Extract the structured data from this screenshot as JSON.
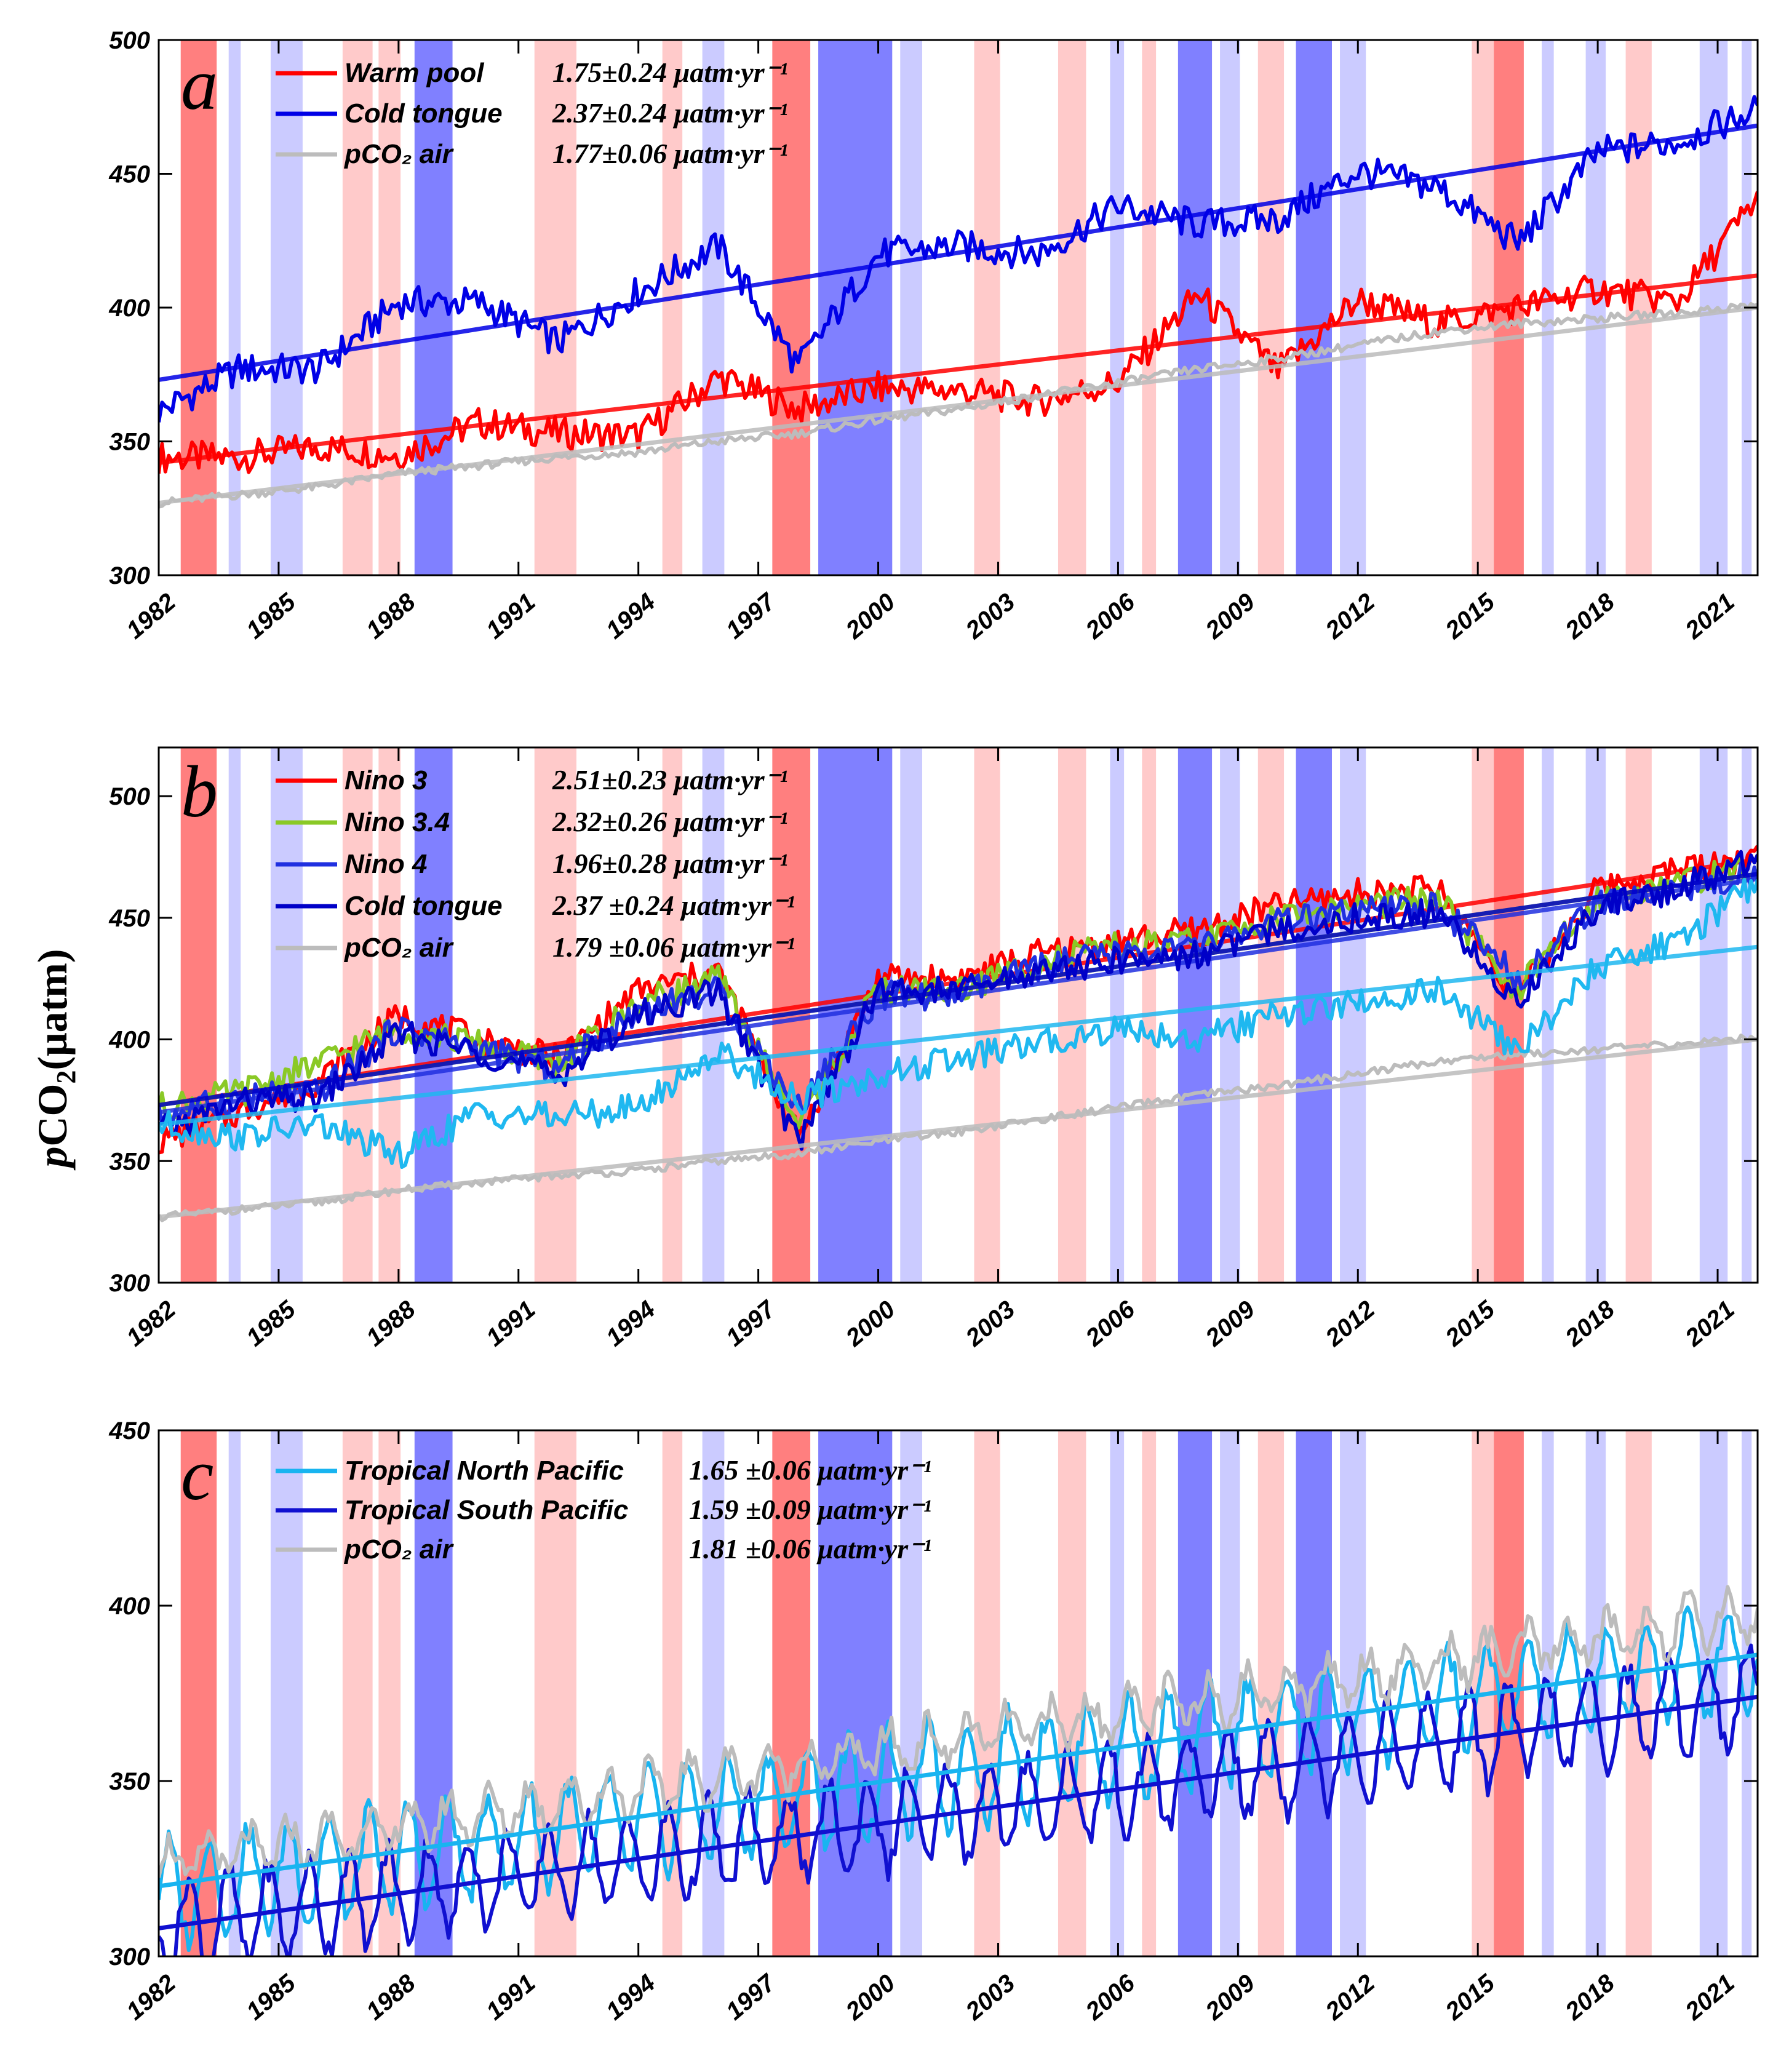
{
  "figure": {
    "ylabel": "pCO₂(μatm)",
    "ylabel_parts": {
      "italic": "p",
      "main": "CO",
      "sub": "2",
      "tail": "(μatm)"
    }
  },
  "colors": {
    "el_nino_strong": "#ff7f7f",
    "el_nino_weak": "#ffcaca",
    "la_nina_strong": "#8080ff",
    "la_nina_weak": "#cbcbff"
  },
  "enso_bands": [
    {
      "start": 1982.55,
      "end": 1983.45,
      "kind": "el_nino_strong"
    },
    {
      "start": 1983.75,
      "end": 1984.05,
      "kind": "la_nina_weak"
    },
    {
      "start": 1984.8,
      "end": 1985.6,
      "kind": "la_nina_weak"
    },
    {
      "start": 1986.6,
      "end": 1987.35,
      "kind": "el_nino_weak"
    },
    {
      "start": 1987.5,
      "end": 1988.05,
      "kind": "el_nino_weak"
    },
    {
      "start": 1988.4,
      "end": 1989.35,
      "kind": "la_nina_strong"
    },
    {
      "start": 1991.4,
      "end": 1992.45,
      "kind": "el_nino_weak"
    },
    {
      "start": 1994.6,
      "end": 1995.1,
      "kind": "el_nino_weak"
    },
    {
      "start": 1995.6,
      "end": 1996.15,
      "kind": "la_nina_weak"
    },
    {
      "start": 1997.35,
      "end": 1998.3,
      "kind": "el_nino_strong"
    },
    {
      "start": 1998.5,
      "end": 2000.35,
      "kind": "la_nina_strong"
    },
    {
      "start": 2000.55,
      "end": 2001.1,
      "kind": "la_nina_weak"
    },
    {
      "start": 2002.4,
      "end": 2003.05,
      "kind": "el_nino_weak"
    },
    {
      "start": 2004.5,
      "end": 2005.2,
      "kind": "el_nino_weak"
    },
    {
      "start": 2005.8,
      "end": 2006.15,
      "kind": "la_nina_weak"
    },
    {
      "start": 2006.6,
      "end": 2006.95,
      "kind": "el_nino_weak"
    },
    {
      "start": 2007.5,
      "end": 2008.35,
      "kind": "la_nina_strong"
    },
    {
      "start": 2008.55,
      "end": 2009.05,
      "kind": "la_nina_weak"
    },
    {
      "start": 2009.5,
      "end": 2010.15,
      "kind": "el_nino_weak"
    },
    {
      "start": 2010.45,
      "end": 2011.35,
      "kind": "la_nina_strong"
    },
    {
      "start": 2011.55,
      "end": 2012.2,
      "kind": "la_nina_weak"
    },
    {
      "start": 2014.85,
      "end": 2015.4,
      "kind": "el_nino_weak"
    },
    {
      "start": 2015.4,
      "end": 2016.15,
      "kind": "el_nino_strong"
    },
    {
      "start": 2016.6,
      "end": 2016.9,
      "kind": "la_nina_weak"
    },
    {
      "start": 2017.7,
      "end": 2018.2,
      "kind": "la_nina_weak"
    },
    {
      "start": 2018.7,
      "end": 2019.35,
      "kind": "el_nino_weak"
    },
    {
      "start": 2020.55,
      "end": 2021.25,
      "kind": "la_nina_weak"
    },
    {
      "start": 2021.6,
      "end": 2021.85,
      "kind": "la_nina_weak"
    }
  ],
  "panels": [
    {
      "letter": "a",
      "legend": [
        {
          "label": "Warm pool",
          "rate": "1.75±0.24 μatm·yr⁻¹",
          "color": "#ff0000"
        },
        {
          "label": "Cold tongue",
          "rate": "2.37±0.24 μatm·yr⁻¹",
          "color": "#0000e6"
        },
        {
          "label": "pCO₂ air",
          "rate": "1.77±0.06 μatm·yr⁻¹",
          "color": "#bcbcbc"
        }
      ]
    },
    {
      "letter": "b",
      "legend": [
        {
          "label": "Nino 3",
          "rate": "2.51±0.23 μatm·yr⁻¹",
          "color": "#ff0000"
        },
        {
          "label": "Nino 3.4",
          "rate": "2.32±0.26 μatm·yr⁻¹",
          "color": "#8ac926"
        },
        {
          "label": "Nino 4",
          "rate": "1.96±0.28 μatm·yr⁻¹",
          "color": "#2030e0"
        },
        {
          "label": "Cold tongue",
          "rate": "2.37 ±0.24 μatm·yr⁻¹",
          "color": "#0000c8"
        },
        {
          "label": "pCO₂ air",
          "rate": "1.79 ±0.06 μatm·yr⁻¹",
          "color": "#bcbcbc"
        }
      ]
    },
    {
      "letter": "c",
      "legend": [
        {
          "label": "Tropical North Pacific",
          "rate": "1.65 ±0.06 μatm·yr⁻¹",
          "color": "#18b4f0"
        },
        {
          "label": "Tropical South Pacific",
          "rate": "1.59 ±0.09 μatm·yr⁻¹",
          "color": "#1010d0"
        },
        {
          "label": "pCO₂ air",
          "rate": "1.81 ±0.06 μatm·yr⁻¹",
          "color": "#bcbcbc"
        }
      ]
    }
  ],
  "chart_data": [
    {
      "type": "line",
      "xlim": [
        1982,
        2022
      ],
      "ylim": [
        300,
        500
      ],
      "xticks": [
        "1982",
        "1985",
        "1988",
        "1991",
        "1994",
        "1997",
        "2000",
        "2003",
        "2006",
        "2009",
        "2012",
        "2015",
        "2018",
        "2021"
      ],
      "yticks": [
        "300",
        "350",
        "400",
        "450",
        "500"
      ],
      "x": [
        1982,
        1984,
        1986,
        1988,
        1990,
        1992,
        1994,
        1996,
        1998,
        2000,
        2002,
        2004,
        2006,
        2008,
        2010,
        2012,
        2014,
        2016,
        2018,
        2020,
        2022
      ],
      "series": [
        {
          "name": "Warm pool",
          "color": "#ff0000",
          "values": [
            344,
            344,
            348,
            345,
            357,
            353,
            352,
            374,
            362,
            370,
            369,
            365,
            372,
            405,
            376,
            403,
            394,
            400,
            407,
            402,
            441
          ],
          "trend": [
            342,
            412
          ]
        },
        {
          "name": "Cold tongue",
          "color": "#0000e6",
          "values": [
            361,
            377,
            377,
            402,
            402,
            387,
            406,
            423,
            378,
            420,
            423,
            420,
            438,
            431,
            433,
            451,
            445,
            424,
            458,
            462,
            474
          ],
          "trend": [
            373,
            468
          ]
        },
        {
          "name": "pCO2 air",
          "color": "#bcbcbc",
          "values": [
            327,
            330,
            333,
            338,
            341,
            344,
            346,
            350,
            353,
            358,
            362,
            367,
            372,
            377,
            381,
            386,
            391,
            394,
            396,
            398,
            401
          ],
          "trend": [
            327,
            400
          ]
        }
      ]
    },
    {
      "type": "line",
      "xlim": [
        1982,
        2022
      ],
      "ylim": [
        300,
        520
      ],
      "xticks": [
        "1982",
        "1985",
        "1988",
        "1991",
        "1994",
        "1997",
        "2000",
        "2003",
        "2006",
        "2009",
        "2012",
        "2015",
        "2018",
        "2021"
      ],
      "yticks": [
        "300",
        "350",
        "400",
        "450",
        "500"
      ],
      "x": [
        1982,
        1984,
        1986,
        1988,
        1990,
        1992,
        1994,
        1996,
        1998,
        2000,
        2002,
        2004,
        2006,
        2008,
        2010,
        2012,
        2014,
        2016,
        2018,
        2020,
        2022
      ],
      "series": [
        {
          "name": "Nino 3",
          "color": "#ff0000",
          "values": [
            358,
            370,
            383,
            410,
            400,
            392,
            420,
            428,
            360,
            425,
            425,
            435,
            440,
            445,
            455,
            460,
            462,
            418,
            462,
            470,
            475
          ],
          "trend": [
            373,
            474
          ]
        },
        {
          "name": "Nino 3.4",
          "color": "#8ac926",
          "values": [
            372,
            378,
            390,
            405,
            398,
            390,
            415,
            425,
            365,
            420,
            420,
            432,
            438,
            440,
            450,
            455,
            458,
            420,
            458,
            465,
            470
          ],
          "trend": [
            373,
            468
          ]
        },
        {
          "name": "Nino 4",
          "color": "#2030e0",
          "values": [
            368,
            376,
            378,
            405,
            396,
            388,
            412,
            420,
            372,
            418,
            418,
            430,
            435,
            438,
            448,
            452,
            455,
            425,
            455,
            462,
            468
          ],
          "trend": [
            370,
            466
          ]
        },
        {
          "name": "Cold tongue",
          "color": "#0000c8",
          "values": [
            362,
            374,
            376,
            402,
            395,
            385,
            410,
            420,
            358,
            420,
            420,
            428,
            432,
            435,
            445,
            450,
            452,
            415,
            455,
            462,
            474
          ],
          "trend": [
            373,
            468
          ]
        },
        {
          "name": "pCO2 air",
          "color": "#bcbcbc",
          "values": [
            327,
            330,
            333,
            338,
            341,
            344,
            346,
            350,
            353,
            358,
            362,
            367,
            372,
            377,
            381,
            386,
            391,
            394,
            396,
            398,
            401
          ],
          "trend": [
            327,
            400
          ]
        },
        {
          "name": "",
          "color": "#1fb8f0",
          "values": [
            365,
            360,
            365,
            352,
            370,
            368,
            372,
            395,
            375,
            385,
            392,
            398,
            405,
            400,
            410,
            415,
            420,
            395,
            430,
            440,
            465
          ],
          "trend": [
            365,
            438
          ]
        }
      ]
    },
    {
      "type": "line",
      "xlim": [
        1982,
        2022
      ],
      "ylim": [
        300,
        450
      ],
      "xticks": [
        "1982",
        "1985",
        "1988",
        "1991",
        "1994",
        "1997",
        "2000",
        "2003",
        "2006",
        "2009",
        "2012",
        "2015",
        "2018",
        "2021"
      ],
      "yticks": [
        "300",
        "350",
        "400",
        "450"
      ],
      "seasonal": true,
      "series": [
        {
          "name": "Tropical North Pacific",
          "color": "#18b4f0",
          "start": 318,
          "end": 386,
          "amplitude": 14
        },
        {
          "name": "Tropical South Pacific",
          "color": "#1010d0",
          "start": 308,
          "end": 374,
          "amplitude": 13
        },
        {
          "name": "pCO2 air",
          "color": "#bcbcbc",
          "start": 326,
          "end": 398,
          "amplitude": 6
        }
      ],
      "trends": [
        {
          "color": "#18b4f0",
          "values": [
            320,
            386
          ]
        },
        {
          "color": "#1010d0",
          "values": [
            308,
            374
          ]
        }
      ]
    }
  ]
}
